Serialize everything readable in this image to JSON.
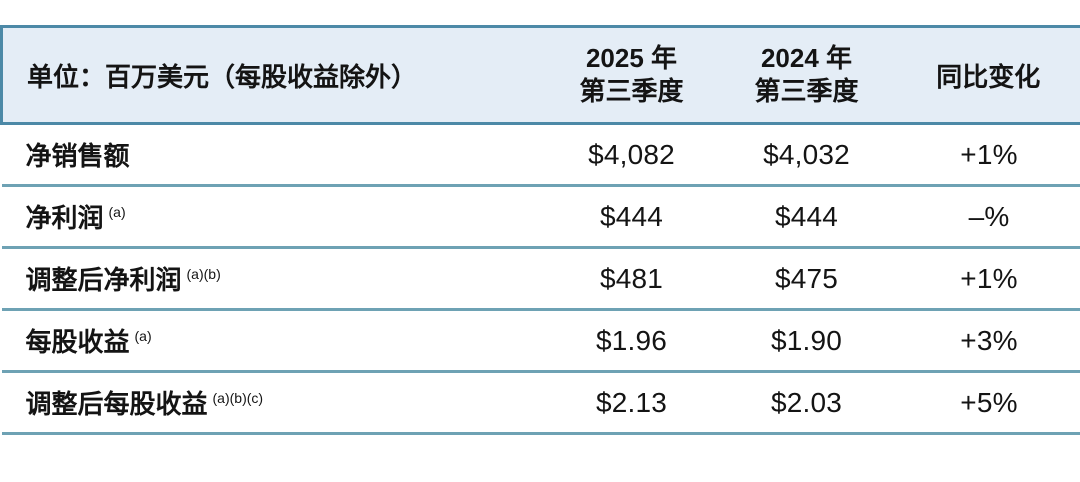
{
  "colors": {
    "header_bg": "#e4edf6",
    "header_border": "#4c89a7",
    "row_border": "#6ea2b4",
    "text": "#141414",
    "page_bg": "#ffffff"
  },
  "chart_data": {
    "type": "table",
    "unit_note": "单位：百万美元（每股收益除外）",
    "column_headers": [
      [
        "2025 年",
        "第三季度"
      ],
      [
        "2024 年",
        "第三季度"
      ],
      [
        "同比变化"
      ]
    ],
    "rows": [
      {
        "label": "净销售额",
        "footnote": "",
        "q3_2025": "$4,082",
        "q3_2024": "$4,032",
        "yoy": "+1%"
      },
      {
        "label": "净利润",
        "footnote": "(a)",
        "q3_2025": "$444",
        "q3_2024": "$444",
        "yoy": "–%"
      },
      {
        "label": "调整后净利润",
        "footnote": "(a)(b)",
        "q3_2025": "$481",
        "q3_2024": "$475",
        "yoy": "+1%"
      },
      {
        "label": "每股收益",
        "footnote": "(a)",
        "q3_2025": "$1.96",
        "q3_2024": "$1.90",
        "yoy": "+3%"
      },
      {
        "label": "调整后每股收益",
        "footnote": "(a)(b)(c)",
        "q3_2025": "$2.13",
        "q3_2024": "$2.03",
        "yoy": "+5%"
      }
    ]
  }
}
